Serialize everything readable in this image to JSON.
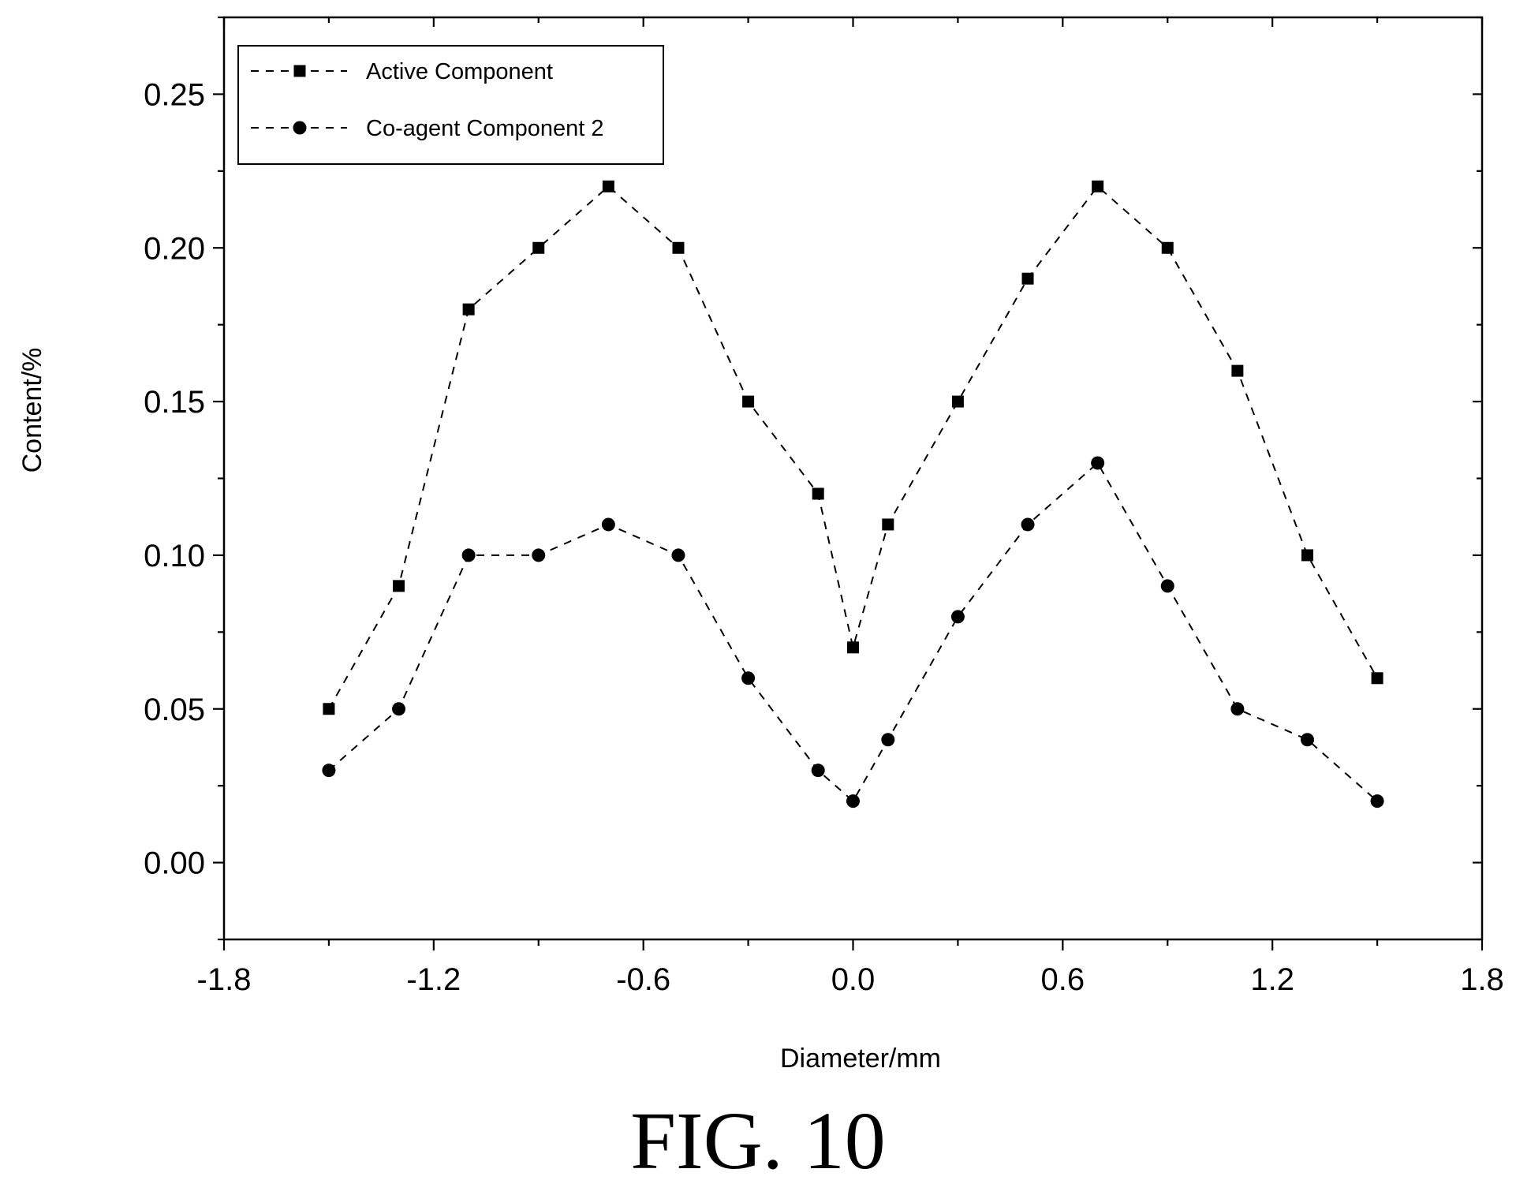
{
  "figure_caption": "FIG. 10",
  "chart_data": {
    "type": "line",
    "title": "",
    "xlabel": "Diameter/mm",
    "ylabel": "Content/%",
    "xlim": [
      -1.8,
      1.8
    ],
    "ylim": [
      -0.025,
      0.275
    ],
    "x_ticks": [
      "-1.8",
      "-1.2",
      "-0.6",
      "0.0",
      "0.6",
      "1.2",
      "1.8"
    ],
    "y_ticks": [
      "0.00",
      "0.05",
      "0.10",
      "0.15",
      "0.20",
      "0.25"
    ],
    "grid": false,
    "legend_position": "top-left",
    "x": [
      -1.5,
      -1.3,
      -1.1,
      -0.9,
      -0.7,
      -0.5,
      -0.3,
      -0.1,
      0.0,
      0.1,
      0.3,
      0.5,
      0.7,
      0.9,
      1.1,
      1.3,
      1.5
    ],
    "series": [
      {
        "name": "Active Component",
        "marker": "square",
        "line_style": "dashed",
        "color": "#000000",
        "values": [
          0.05,
          0.09,
          0.18,
          0.2,
          0.22,
          0.2,
          0.15,
          0.12,
          0.07,
          0.11,
          0.15,
          0.19,
          0.22,
          0.2,
          0.16,
          0.1,
          0.06
        ]
      },
      {
        "name": "Co-agent Component 2",
        "marker": "circle",
        "line_style": "dashed",
        "color": "#000000",
        "values": [
          0.03,
          0.05,
          0.1,
          0.1,
          0.11,
          0.1,
          0.06,
          0.03,
          0.02,
          0.04,
          0.08,
          0.11,
          0.13,
          0.09,
          0.05,
          0.04,
          0.02
        ]
      }
    ]
  }
}
